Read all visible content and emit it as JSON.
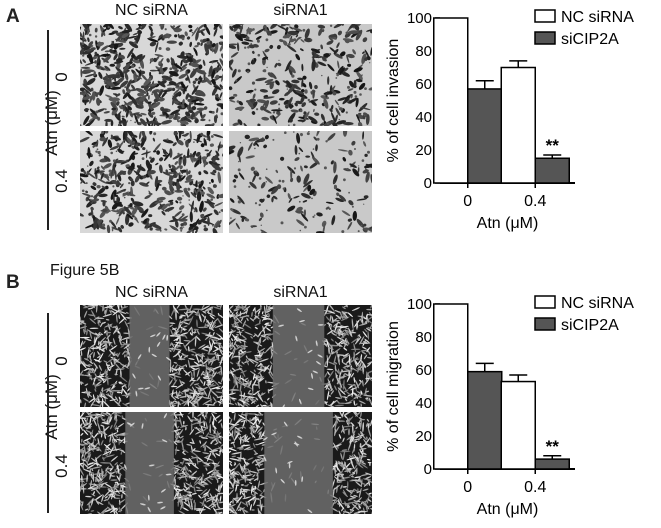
{
  "panels": [
    {
      "letter": "A",
      "subtitle": "",
      "col_labels": [
        "NC siRNA",
        "siRNA1"
      ],
      "row_title": "Atn (μM)",
      "row_labels": [
        "0",
        "0.4"
      ],
      "image_style": "transwell",
      "chart_data": {
        "type": "bar",
        "categories": [
          "0",
          "0.4"
        ],
        "series": [
          {
            "name": "NC siRNA",
            "values": [
              100,
              70
            ],
            "errors": [
              0,
              4
            ],
            "color": "#ffffff"
          },
          {
            "name": "siCIP2A",
            "values": [
              57,
              15
            ],
            "errors": [
              5,
              2
            ],
            "color": "#555555"
          }
        ],
        "ylabel": "% of cell invasion",
        "xlabel": "Atn (μM)",
        "ylim": [
          0,
          100
        ],
        "yticks": [
          0,
          20,
          40,
          60,
          80,
          100
        ],
        "annotations": [
          {
            "category": "0.4",
            "series": "siCIP2A",
            "text": "**"
          }
        ],
        "legend": "top-right",
        "grid": false
      }
    },
    {
      "letter": "B",
      "subtitle": "Figure 5B",
      "col_labels": [
        "NC siRNA",
        "siRNA1"
      ],
      "row_title": "Atn (μM)",
      "row_labels": [
        "0",
        "0.4"
      ],
      "image_style": "wound",
      "chart_data": {
        "type": "bar",
        "categories": [
          "0",
          "0.4"
        ],
        "series": [
          {
            "name": "NC siRNA",
            "values": [
              100,
              53
            ],
            "errors": [
              0,
              4
            ],
            "color": "#ffffff"
          },
          {
            "name": "siCIP2A",
            "values": [
              59,
              6
            ],
            "errors": [
              5,
              2
            ],
            "color": "#555555"
          }
        ],
        "ylabel": "% of cell migration",
        "xlabel": "Atn (μM)",
        "ylim": [
          0,
          100
        ],
        "yticks": [
          0,
          20,
          40,
          60,
          80,
          100
        ],
        "annotations": [
          {
            "category": "0.4",
            "series": "siCIP2A",
            "text": "**"
          }
        ],
        "legend": "top-right",
        "grid": false
      }
    }
  ]
}
